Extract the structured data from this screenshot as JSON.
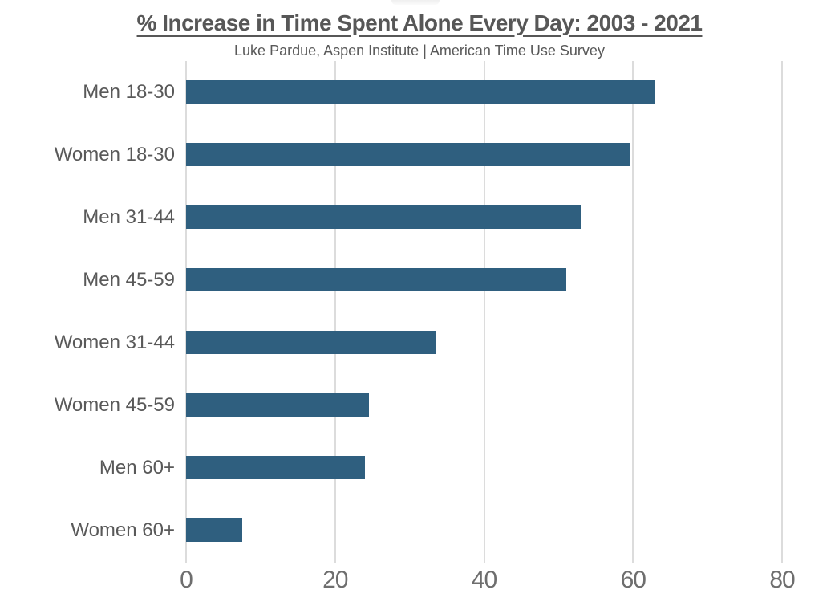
{
  "page": {
    "background_color": "#ffffff"
  },
  "header": {
    "title": "% Increase in Time Spent Alone Every Day: 2003 - 2021",
    "subtitle": "Luke Pardue, Aspen Institute | American Time Use Survey"
  },
  "chart_data": {
    "type": "bar",
    "orientation": "horizontal",
    "title": "% Increase in Time Spent Alone Every Day: 2003 - 2021",
    "subtitle": "Luke Pardue, Aspen Institute | American Time Use Survey",
    "categories": [
      "Men 18-30",
      "Women 18-30",
      "Men 31-44",
      "Men 45-59",
      "Women 31-44",
      "Women 45-59",
      "Men 60+",
      "Women 60+"
    ],
    "values": [
      63,
      59.5,
      53,
      51,
      33.5,
      24.5,
      24,
      7.5
    ],
    "xlabel": "",
    "ylabel": "",
    "xlim": [
      0,
      80
    ],
    "x_ticks": [
      0,
      20,
      40,
      60,
      80
    ],
    "grid": "vertical-only",
    "legend": "none",
    "bar_color": "#2F5F7F",
    "gridline_color": "#DCDCDC",
    "category_label_color": "#595959",
    "tick_label_color": "#6E6E6E",
    "title_color": "#575757"
  }
}
